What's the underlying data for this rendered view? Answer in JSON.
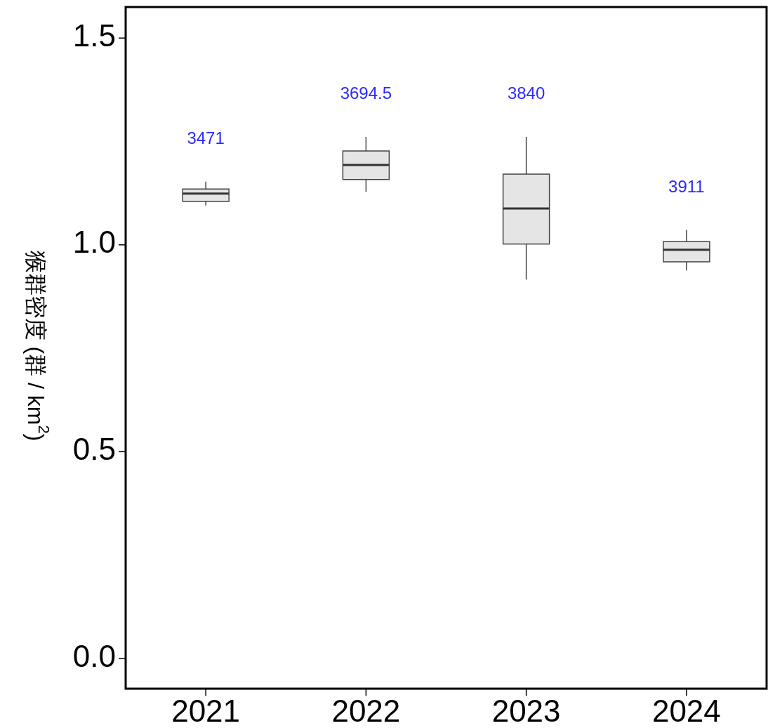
{
  "chart_data": {
    "type": "box",
    "ylabel": "猴群密度 (群 / km$^{2}$)",
    "categories": [
      "2021",
      "2022",
      "2023",
      "2024"
    ],
    "ylim": [
      -0.073,
      1.575
    ],
    "yticks": [
      {
        "value": 0,
        "label": "0.0"
      },
      {
        "value": 0.5,
        "label": "0.5"
      },
      {
        "value": 1,
        "label": "1.0"
      },
      {
        "value": 1.5,
        "label": "1.5"
      }
    ],
    "grid": false,
    "color": "#e5e5e5",
    "boxes": [
      {
        "low": 1.095,
        "q1": 1.105,
        "median": 1.124,
        "q3": 1.135,
        "high": 1.153
      },
      {
        "low": 1.128,
        "q1": 1.158,
        "median": 1.193,
        "q3": 1.227,
        "high": 1.261
      },
      {
        "low": 0.916,
        "q1": 1.002,
        "median": 1.088,
        "q3": 1.171,
        "high": 1.261
      },
      {
        "low": 0.938,
        "q1": 0.959,
        "median": 0.988,
        "q3": 1.008,
        "high": 1.036
      }
    ],
    "annotations": [
      "3471",
      "3694.5",
      "3840",
      "3911"
    ]
  }
}
